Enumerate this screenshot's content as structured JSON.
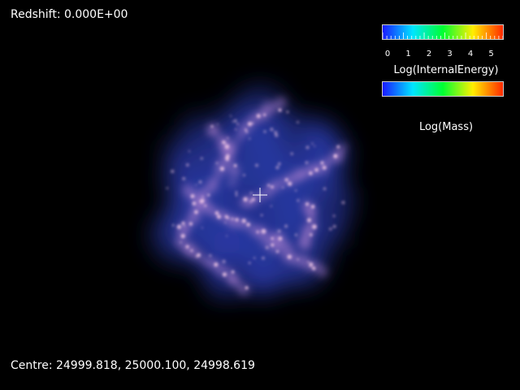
{
  "viewer": {
    "redshift_label": "Redshift: 0.000E+00",
    "centre_label": "Centre: 24999.818, 25000.100, 24998.619",
    "background_color": "#000000"
  },
  "colorbars": {
    "internal_energy": {
      "title": "Log(InternalEnergy)",
      "tick_labels": [
        "0",
        "1",
        "2",
        "3",
        "4",
        "5"
      ],
      "range": [
        0,
        5.8
      ],
      "colors": [
        "#1a1aff",
        "#00e5ff",
        "#00ff33",
        "#ffee00",
        "#ff2a00"
      ]
    },
    "mass": {
      "title": "Log(Mass)",
      "colors": [
        "#1a1aff",
        "#00e5ff",
        "#00ff33",
        "#ffee00",
        "#ff2a00"
      ]
    }
  },
  "scene": {
    "structure": "gas-particle cloud with filaments",
    "colors": {
      "diffuse": "#2a3aa8",
      "filament": "#b080d0",
      "knot": "#f0c8e6"
    }
  },
  "crosshair_icon": "plus-crosshair-icon"
}
